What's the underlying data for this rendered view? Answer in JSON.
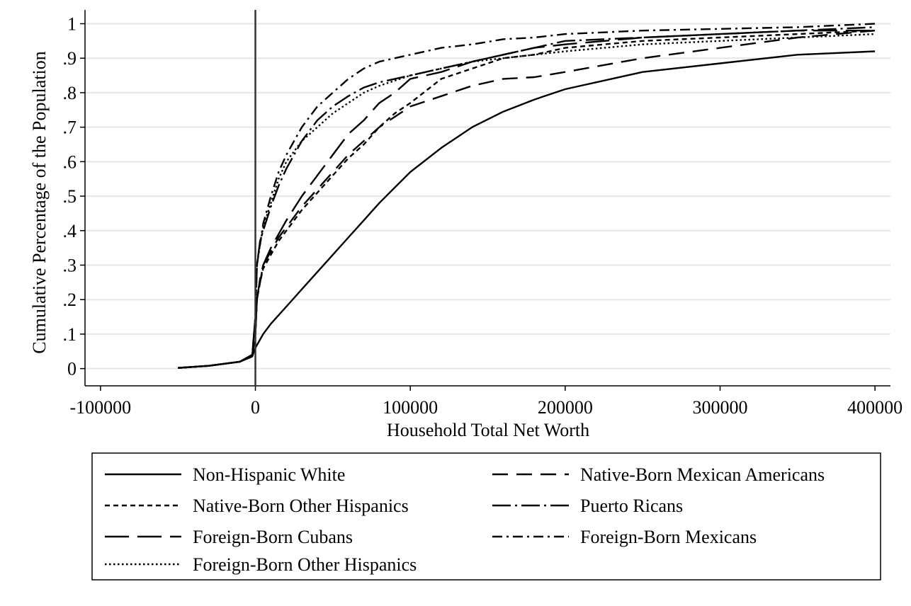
{
  "chart_data": {
    "type": "line",
    "title": "",
    "xlabel": "Household Total Net Worth",
    "ylabel": "Cumulative Percentage of the Population",
    "xlim": [
      -110000,
      410000
    ],
    "ylim": [
      -0.05,
      1.04
    ],
    "x_ticks": [
      {
        "value": -100000,
        "label": "-100000"
      },
      {
        "value": 0,
        "label": "0"
      },
      {
        "value": 100000,
        "label": "100000"
      },
      {
        "value": 200000,
        "label": "200000"
      },
      {
        "value": 300000,
        "label": "300000"
      },
      {
        "value": 400000,
        "label": "400000"
      }
    ],
    "y_ticks": [
      {
        "value": 0,
        "label": "0"
      },
      {
        "value": 0.1,
        "label": ".1"
      },
      {
        "value": 0.2,
        "label": ".2"
      },
      {
        "value": 0.3,
        "label": ".3"
      },
      {
        "value": 0.4,
        "label": ".4"
      },
      {
        "value": 0.5,
        "label": ".5"
      },
      {
        "value": 0.6,
        "label": ".6"
      },
      {
        "value": 0.7,
        "label": ".7"
      },
      {
        "value": 0.8,
        "label": ".8"
      },
      {
        "value": 0.9,
        "label": ".9"
      },
      {
        "value": 1,
        "label": "1"
      }
    ],
    "grid": true,
    "reference_line_x": 0,
    "legend_position": "bottom",
    "series": [
      {
        "name": "Non-Hispanic White",
        "dash": "",
        "points": [
          [
            -50000,
            0.002
          ],
          [
            -30000,
            0.008
          ],
          [
            -10000,
            0.02
          ],
          [
            -2000,
            0.035
          ],
          [
            0,
            0.06
          ],
          [
            5000,
            0.1
          ],
          [
            10000,
            0.13
          ],
          [
            20000,
            0.18
          ],
          [
            30000,
            0.23
          ],
          [
            40000,
            0.28
          ],
          [
            50000,
            0.33
          ],
          [
            60000,
            0.38
          ],
          [
            70000,
            0.43
          ],
          [
            80000,
            0.48
          ],
          [
            90000,
            0.525
          ],
          [
            100000,
            0.57
          ],
          [
            120000,
            0.64
          ],
          [
            140000,
            0.7
          ],
          [
            160000,
            0.745
          ],
          [
            180000,
            0.78
          ],
          [
            200000,
            0.81
          ],
          [
            250000,
            0.86
          ],
          [
            300000,
            0.885
          ],
          [
            350000,
            0.91
          ],
          [
            400000,
            0.92
          ]
        ]
      },
      {
        "name": "Native-Born Mexican Americans",
        "dash": "22,12",
        "points": [
          [
            -50000,
            0.002
          ],
          [
            -30000,
            0.008
          ],
          [
            -10000,
            0.02
          ],
          [
            -2000,
            0.04
          ],
          [
            0,
            0.1
          ],
          [
            1000,
            0.2
          ],
          [
            3000,
            0.25
          ],
          [
            5000,
            0.3
          ],
          [
            10000,
            0.34
          ],
          [
            15000,
            0.38
          ],
          [
            20000,
            0.41
          ],
          [
            30000,
            0.47
          ],
          [
            40000,
            0.52
          ],
          [
            50000,
            0.57
          ],
          [
            60000,
            0.62
          ],
          [
            70000,
            0.66
          ],
          [
            80000,
            0.7
          ],
          [
            90000,
            0.73
          ],
          [
            100000,
            0.76
          ],
          [
            120000,
            0.79
          ],
          [
            140000,
            0.82
          ],
          [
            160000,
            0.84
          ],
          [
            180000,
            0.845
          ],
          [
            200000,
            0.86
          ],
          [
            250000,
            0.9
          ],
          [
            300000,
            0.93
          ],
          [
            350000,
            0.96
          ],
          [
            400000,
            0.98
          ]
        ]
      },
      {
        "name": "Native-Born Other Hispanics",
        "dash": "7,5",
        "points": [
          [
            -50000,
            0.002
          ],
          [
            -30000,
            0.008
          ],
          [
            -10000,
            0.02
          ],
          [
            -2000,
            0.04
          ],
          [
            0,
            0.1
          ],
          [
            1000,
            0.2
          ],
          [
            3000,
            0.25
          ],
          [
            5000,
            0.29
          ],
          [
            10000,
            0.33
          ],
          [
            15000,
            0.37
          ],
          [
            20000,
            0.4
          ],
          [
            30000,
            0.46
          ],
          [
            40000,
            0.51
          ],
          [
            50000,
            0.56
          ],
          [
            60000,
            0.61
          ],
          [
            70000,
            0.65
          ],
          [
            80000,
            0.7
          ],
          [
            90000,
            0.74
          ],
          [
            100000,
            0.77
          ],
          [
            120000,
            0.84
          ],
          [
            140000,
            0.87
          ],
          [
            160000,
            0.9
          ],
          [
            180000,
            0.91
          ],
          [
            200000,
            0.93
          ],
          [
            250000,
            0.95
          ],
          [
            300000,
            0.96
          ],
          [
            350000,
            0.97
          ],
          [
            400000,
            0.98
          ]
        ]
      },
      {
        "name": "Puerto Ricans",
        "dash": "26,6,3,6",
        "points": [
          [
            -50000,
            0.002
          ],
          [
            -30000,
            0.008
          ],
          [
            -10000,
            0.02
          ],
          [
            -2000,
            0.04
          ],
          [
            0,
            0.15
          ],
          [
            1000,
            0.3
          ],
          [
            3000,
            0.37
          ],
          [
            5000,
            0.4
          ],
          [
            10000,
            0.47
          ],
          [
            15000,
            0.53
          ],
          [
            20000,
            0.58
          ],
          [
            30000,
            0.66
          ],
          [
            40000,
            0.72
          ],
          [
            50000,
            0.76
          ],
          [
            60000,
            0.79
          ],
          [
            70000,
            0.815
          ],
          [
            80000,
            0.83
          ],
          [
            90000,
            0.84
          ],
          [
            100000,
            0.85
          ],
          [
            120000,
            0.87
          ],
          [
            140000,
            0.89
          ],
          [
            160000,
            0.91
          ],
          [
            180000,
            0.93
          ],
          [
            200000,
            0.95
          ],
          [
            250000,
            0.96
          ],
          [
            300000,
            0.97
          ],
          [
            350000,
            0.98
          ],
          [
            400000,
            0.99
          ]
        ]
      },
      {
        "name": "Foreign-Born Cubans",
        "dash": "34,12",
        "points": [
          [
            -50000,
            0.002
          ],
          [
            -30000,
            0.008
          ],
          [
            -10000,
            0.02
          ],
          [
            -2000,
            0.04
          ],
          [
            0,
            0.1
          ],
          [
            1000,
            0.2
          ],
          [
            3000,
            0.26
          ],
          [
            5000,
            0.3
          ],
          [
            10000,
            0.35
          ],
          [
            15000,
            0.39
          ],
          [
            20000,
            0.43
          ],
          [
            30000,
            0.5
          ],
          [
            40000,
            0.56
          ],
          [
            50000,
            0.62
          ],
          [
            60000,
            0.68
          ],
          [
            70000,
            0.72
          ],
          [
            80000,
            0.77
          ],
          [
            90000,
            0.8
          ],
          [
            100000,
            0.84
          ],
          [
            120000,
            0.86
          ],
          [
            140000,
            0.89
          ],
          [
            160000,
            0.91
          ],
          [
            180000,
            0.93
          ],
          [
            200000,
            0.94
          ],
          [
            250000,
            0.96
          ],
          [
            300000,
            0.97
          ],
          [
            350000,
            0.98
          ],
          [
            400000,
            0.98
          ]
        ]
      },
      {
        "name": "Foreign-Born Mexicans",
        "dash": "14,6,3,6",
        "points": [
          [
            -50000,
            0.002
          ],
          [
            -30000,
            0.008
          ],
          [
            -10000,
            0.02
          ],
          [
            -2000,
            0.04
          ],
          [
            0,
            0.15
          ],
          [
            1000,
            0.3
          ],
          [
            3000,
            0.36
          ],
          [
            5000,
            0.42
          ],
          [
            10000,
            0.5
          ],
          [
            15000,
            0.57
          ],
          [
            20000,
            0.62
          ],
          [
            30000,
            0.7
          ],
          [
            40000,
            0.76
          ],
          [
            50000,
            0.8
          ],
          [
            60000,
            0.84
          ],
          [
            70000,
            0.87
          ],
          [
            80000,
            0.89
          ],
          [
            90000,
            0.9
          ],
          [
            100000,
            0.91
          ],
          [
            120000,
            0.93
          ],
          [
            140000,
            0.94
          ],
          [
            160000,
            0.955
          ],
          [
            180000,
            0.96
          ],
          [
            200000,
            0.97
          ],
          [
            250000,
            0.98
          ],
          [
            300000,
            0.985
          ],
          [
            350000,
            0.99
          ],
          [
            400000,
            1.0
          ]
        ]
      },
      {
        "name": "Foreign-Born Other Hispanics",
        "dash": "2.5,3.5",
        "points": [
          [
            -50000,
            0.002
          ],
          [
            -30000,
            0.008
          ],
          [
            -10000,
            0.02
          ],
          [
            -2000,
            0.04
          ],
          [
            0,
            0.15
          ],
          [
            1000,
            0.3
          ],
          [
            3000,
            0.36
          ],
          [
            5000,
            0.41
          ],
          [
            10000,
            0.48
          ],
          [
            15000,
            0.55
          ],
          [
            20000,
            0.6
          ],
          [
            30000,
            0.66
          ],
          [
            40000,
            0.7
          ],
          [
            50000,
            0.74
          ],
          [
            60000,
            0.77
          ],
          [
            70000,
            0.8
          ],
          [
            80000,
            0.82
          ],
          [
            90000,
            0.835
          ],
          [
            100000,
            0.85
          ],
          [
            120000,
            0.87
          ],
          [
            140000,
            0.89
          ],
          [
            160000,
            0.9
          ],
          [
            180000,
            0.91
          ],
          [
            200000,
            0.92
          ],
          [
            250000,
            0.94
          ],
          [
            300000,
            0.95
          ],
          [
            350000,
            0.96
          ],
          [
            400000,
            0.97
          ]
        ]
      }
    ]
  }
}
